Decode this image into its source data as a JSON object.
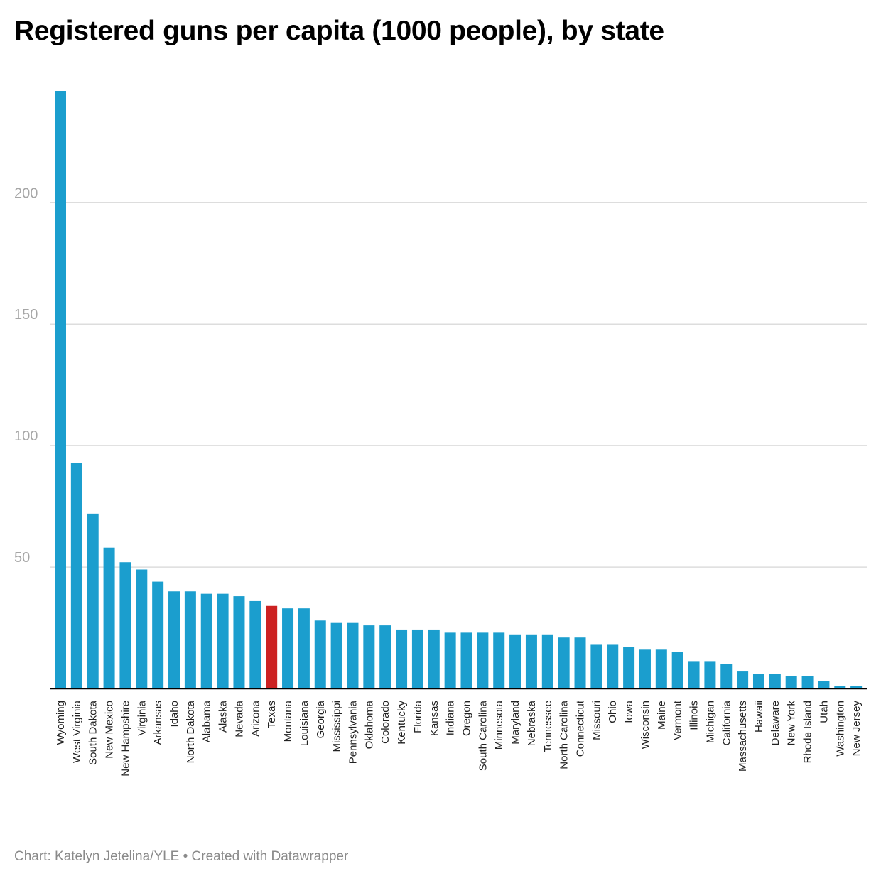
{
  "title": "Registered guns per capita (1000 people), by state",
  "footer": "Chart: Katelyn Jetelina/YLE • Created with Datawrapper",
  "colors": {
    "bar": "#1b9ece",
    "highlight": "#cc2222",
    "grid": "#dddddd",
    "axis": "#000000"
  },
  "chart_data": {
    "type": "bar",
    "title": "Registered guns per capita (1000 people), by state",
    "xlabel": "",
    "ylabel": "",
    "ylim": [
      0,
      246
    ],
    "yticks": [
      50,
      100,
      150,
      200
    ],
    "grid": true,
    "highlight": "Texas",
    "categories": [
      "Wyoming",
      "West Virginia",
      "South Dakota",
      "New Mexico",
      "New Hampshire",
      "Virginia",
      "Arkansas",
      "Idaho",
      "North Dakota",
      "Alabama",
      "Alaska",
      "Nevada",
      "Arizona",
      "Texas",
      "Montana",
      "Louisiana",
      "Georgia",
      "Mississippi",
      "Pennsylvania",
      "Oklahoma",
      "Colorado",
      "Kentucky",
      "Florida",
      "Kansas",
      "Indiana",
      "Oregon",
      "South Carolina",
      "Minnesota",
      "Maryland",
      "Nebraska",
      "Tennessee",
      "North Carolina",
      "Connecticut",
      "Missouri",
      "Ohio",
      "Iowa",
      "Wisconsin",
      "Maine",
      "Vermont",
      "Illinois",
      "Michigan",
      "California",
      "Massachusetts",
      "Hawaii",
      "Delaware",
      "New York",
      "Rhode Island",
      "Utah",
      "Washington",
      "New Jersey"
    ],
    "values": [
      246,
      93,
      72,
      58,
      52,
      49,
      44,
      40,
      40,
      39,
      39,
      38,
      36,
      34,
      33,
      33,
      28,
      27,
      27,
      26,
      26,
      24,
      24,
      24,
      23,
      23,
      23,
      23,
      22,
      22,
      22,
      21,
      21,
      18,
      18,
      17,
      16,
      16,
      15,
      11,
      11,
      10,
      7,
      6,
      6,
      5,
      5,
      3,
      1,
      1
    ]
  }
}
